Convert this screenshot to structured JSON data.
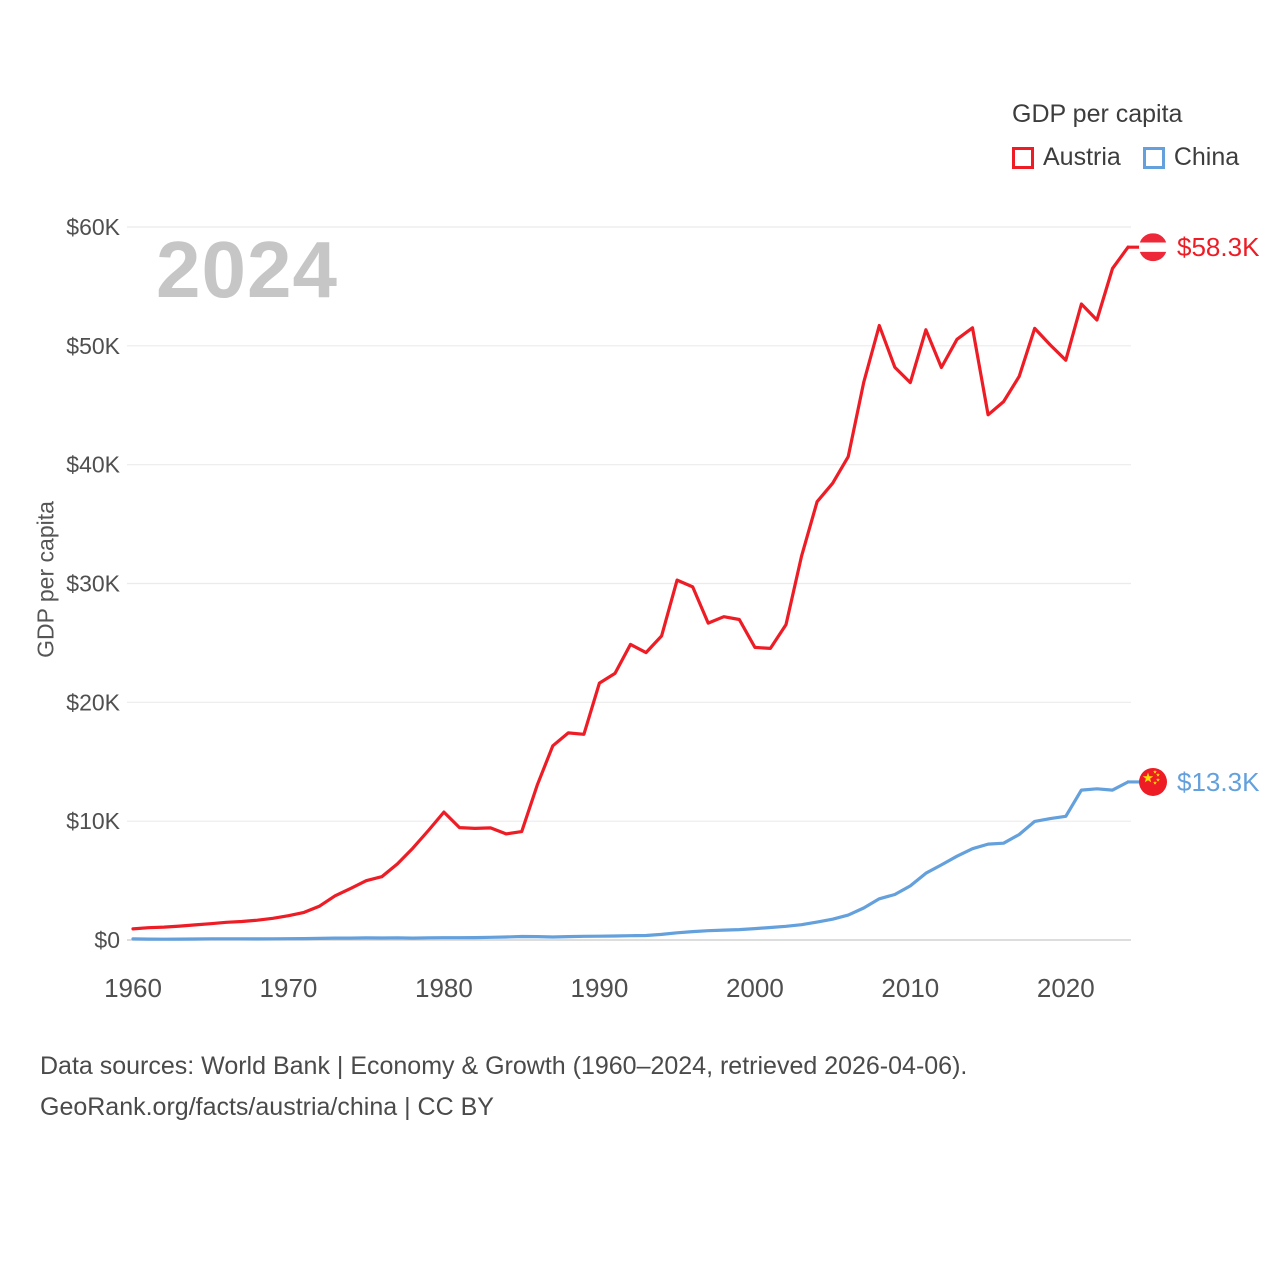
{
  "watermark": "2024",
  "legend": {
    "title": "GDP per capita",
    "series": [
      {
        "label": "Austria",
        "color": "#ee1c25"
      },
      {
        "label": "China",
        "color": "#63a0dc"
      }
    ]
  },
  "y_axis": {
    "title": "GDP per capita",
    "ticks": [
      "$0",
      "$10K",
      "$20K",
      "$30K",
      "$40K",
      "$50K",
      "$60K"
    ]
  },
  "x_axis": {
    "ticks": [
      "1960",
      "1970",
      "1980",
      "1990",
      "2000",
      "2010",
      "2020"
    ]
  },
  "end_labels": [
    {
      "series": "Austria",
      "label": "$58.3K",
      "color": "#ee1c25",
      "flag": "austria-flag-icon"
    },
    {
      "series": "China",
      "label": "$13.3K",
      "color": "#63a0dc",
      "flag": "china-flag-icon"
    }
  ],
  "footer": {
    "line1": "Data sources: World Bank | Economy & Growth (1960–2024, retrieved 2026-04-06).",
    "line2": "GeoRank.org/facts/austria/china | CC BY"
  },
  "chart_data": {
    "type": "line",
    "title": "GDP per capita",
    "xlabel": "",
    "ylabel": "GDP per capita",
    "ylim": [
      0,
      60000
    ],
    "xlim": [
      1960,
      2024
    ],
    "grid": true,
    "legend_position": "top-right",
    "ytick_values": [
      0,
      10000,
      20000,
      30000,
      40000,
      50000,
      60000
    ],
    "xtick_values": [
      1960,
      1970,
      1980,
      1990,
      2000,
      2010,
      2020
    ],
    "x": [
      1960,
      1961,
      1962,
      1963,
      1964,
      1965,
      1966,
      1967,
      1968,
      1969,
      1970,
      1971,
      1972,
      1973,
      1974,
      1975,
      1976,
      1977,
      1978,
      1979,
      1980,
      1981,
      1982,
      1983,
      1984,
      1985,
      1986,
      1987,
      1988,
      1989,
      1990,
      1991,
      1992,
      1993,
      1994,
      1995,
      1996,
      1997,
      1998,
      1999,
      2000,
      2001,
      2002,
      2003,
      2004,
      2005,
      2006,
      2007,
      2008,
      2009,
      2010,
      2011,
      2012,
      2013,
      2014,
      2015,
      2016,
      2017,
      2018,
      2019,
      2020,
      2021,
      2022,
      2023,
      2024
    ],
    "series": [
      {
        "name": "Austria",
        "color": "#ee1c25",
        "end_value_label": "$58.3K",
        "values": [
          935,
          1032,
          1088,
          1170,
          1274,
          1374,
          1486,
          1559,
          1667,
          1830,
          2042,
          2320,
          2856,
          3722,
          4342,
          4994,
          5330,
          6398,
          7726,
          9216,
          10764,
          9455,
          9393,
          9435,
          8930,
          9126,
          13023,
          16343,
          17427,
          17310,
          21620,
          22434,
          24874,
          24187,
          25588,
          30290,
          29710,
          26670,
          27210,
          26970,
          24625,
          24540,
          26540,
          32290,
          36880,
          38430,
          40670,
          46920,
          51709,
          48200,
          46903,
          51350,
          48179,
          50546,
          51520,
          44196,
          45307,
          47429,
          51466,
          50070,
          48789,
          53518,
          52178,
          56506,
          58300
        ]
      },
      {
        "name": "China",
        "color": "#63a0dc",
        "end_value_label": "$13.3K",
        "values": [
          90,
          76,
          71,
          74,
          85,
          98,
          104,
          97,
          91,
          100,
          113,
          119,
          132,
          157,
          160,
          178,
          165,
          185,
          156,
          184,
          195,
          197,
          203,
          225,
          251,
          294,
          282,
          252,
          284,
          311,
          318,
          333,
          366,
          377,
          473,
          610,
          709,
          782,
          829,
          873,
          959,
          1053,
          1149,
          1289,
          1509,
          1753,
          2099,
          2694,
          3468,
          3832,
          4550,
          5618,
          6317,
          7051,
          7679,
          8067,
          8148,
          8879,
          9977,
          10217,
          10409,
          12618,
          12720,
          12614,
          13300
        ]
      }
    ]
  }
}
